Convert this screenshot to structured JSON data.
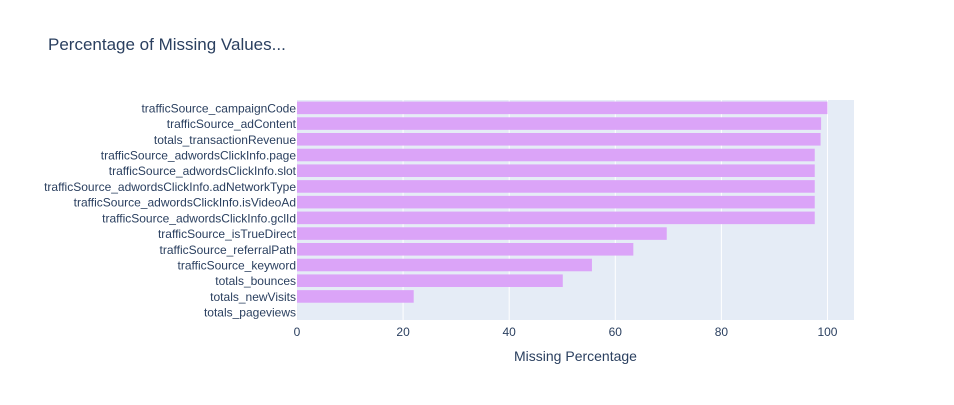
{
  "chart_data": {
    "type": "bar",
    "orientation": "horizontal",
    "title": "Percentage of Missing Values...",
    "xlabel": "Missing Percentage",
    "ylabel": "",
    "xlim": [
      0,
      105
    ],
    "xticks": [
      0,
      20,
      40,
      60,
      80,
      100
    ],
    "grid": true,
    "categories": [
      "trafficSource_campaignCode",
      "trafficSource_adContent",
      "totals_transactionRevenue",
      "trafficSource_adwordsClickInfo.page",
      "trafficSource_adwordsClickInfo.slot",
      "trafficSource_adwordsClickInfo.adNetworkType",
      "trafficSource_adwordsClickInfo.isVideoAd",
      "trafficSource_adwordsClickInfo.gclId",
      "trafficSource_isTrueDirect",
      "trafficSource_referralPath",
      "trafficSource_keyword",
      "totals_bounces",
      "totals_newVisits",
      "totals_pageviews"
    ],
    "values": [
      99.99,
      98.8,
      98.7,
      97.6,
      97.6,
      97.6,
      97.6,
      97.6,
      69.7,
      63.4,
      55.6,
      50.1,
      22.0,
      0.01
    ],
    "bar_color": "#dba4f8",
    "plot_bg_color": "#e5ecf6",
    "grid_color": "#ffffff",
    "text_color": "#2a3f5f",
    "title_color": "#2a3f5f"
  }
}
